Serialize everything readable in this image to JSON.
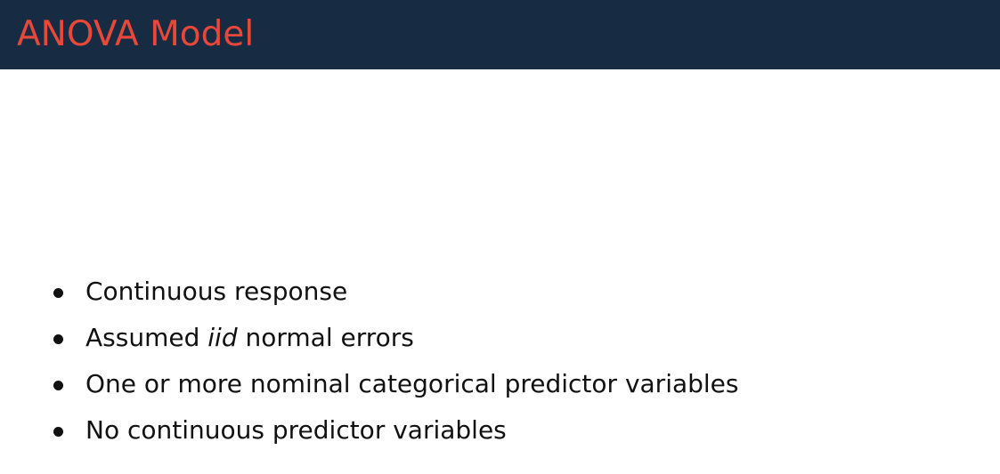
{
  "slide": {
    "title": "ANOVA Model",
    "colors": {
      "header_bg": "#172b43",
      "title": "#e8483a",
      "text": "#111111"
    },
    "bullets": [
      {
        "text": "Continuous response"
      },
      {
        "before": "Assumed ",
        "italic": "iid",
        "after": " normal errors"
      },
      {
        "text": "One or more nominal categorical predictor variables"
      },
      {
        "text": "No continuous predictor variables"
      }
    ]
  }
}
